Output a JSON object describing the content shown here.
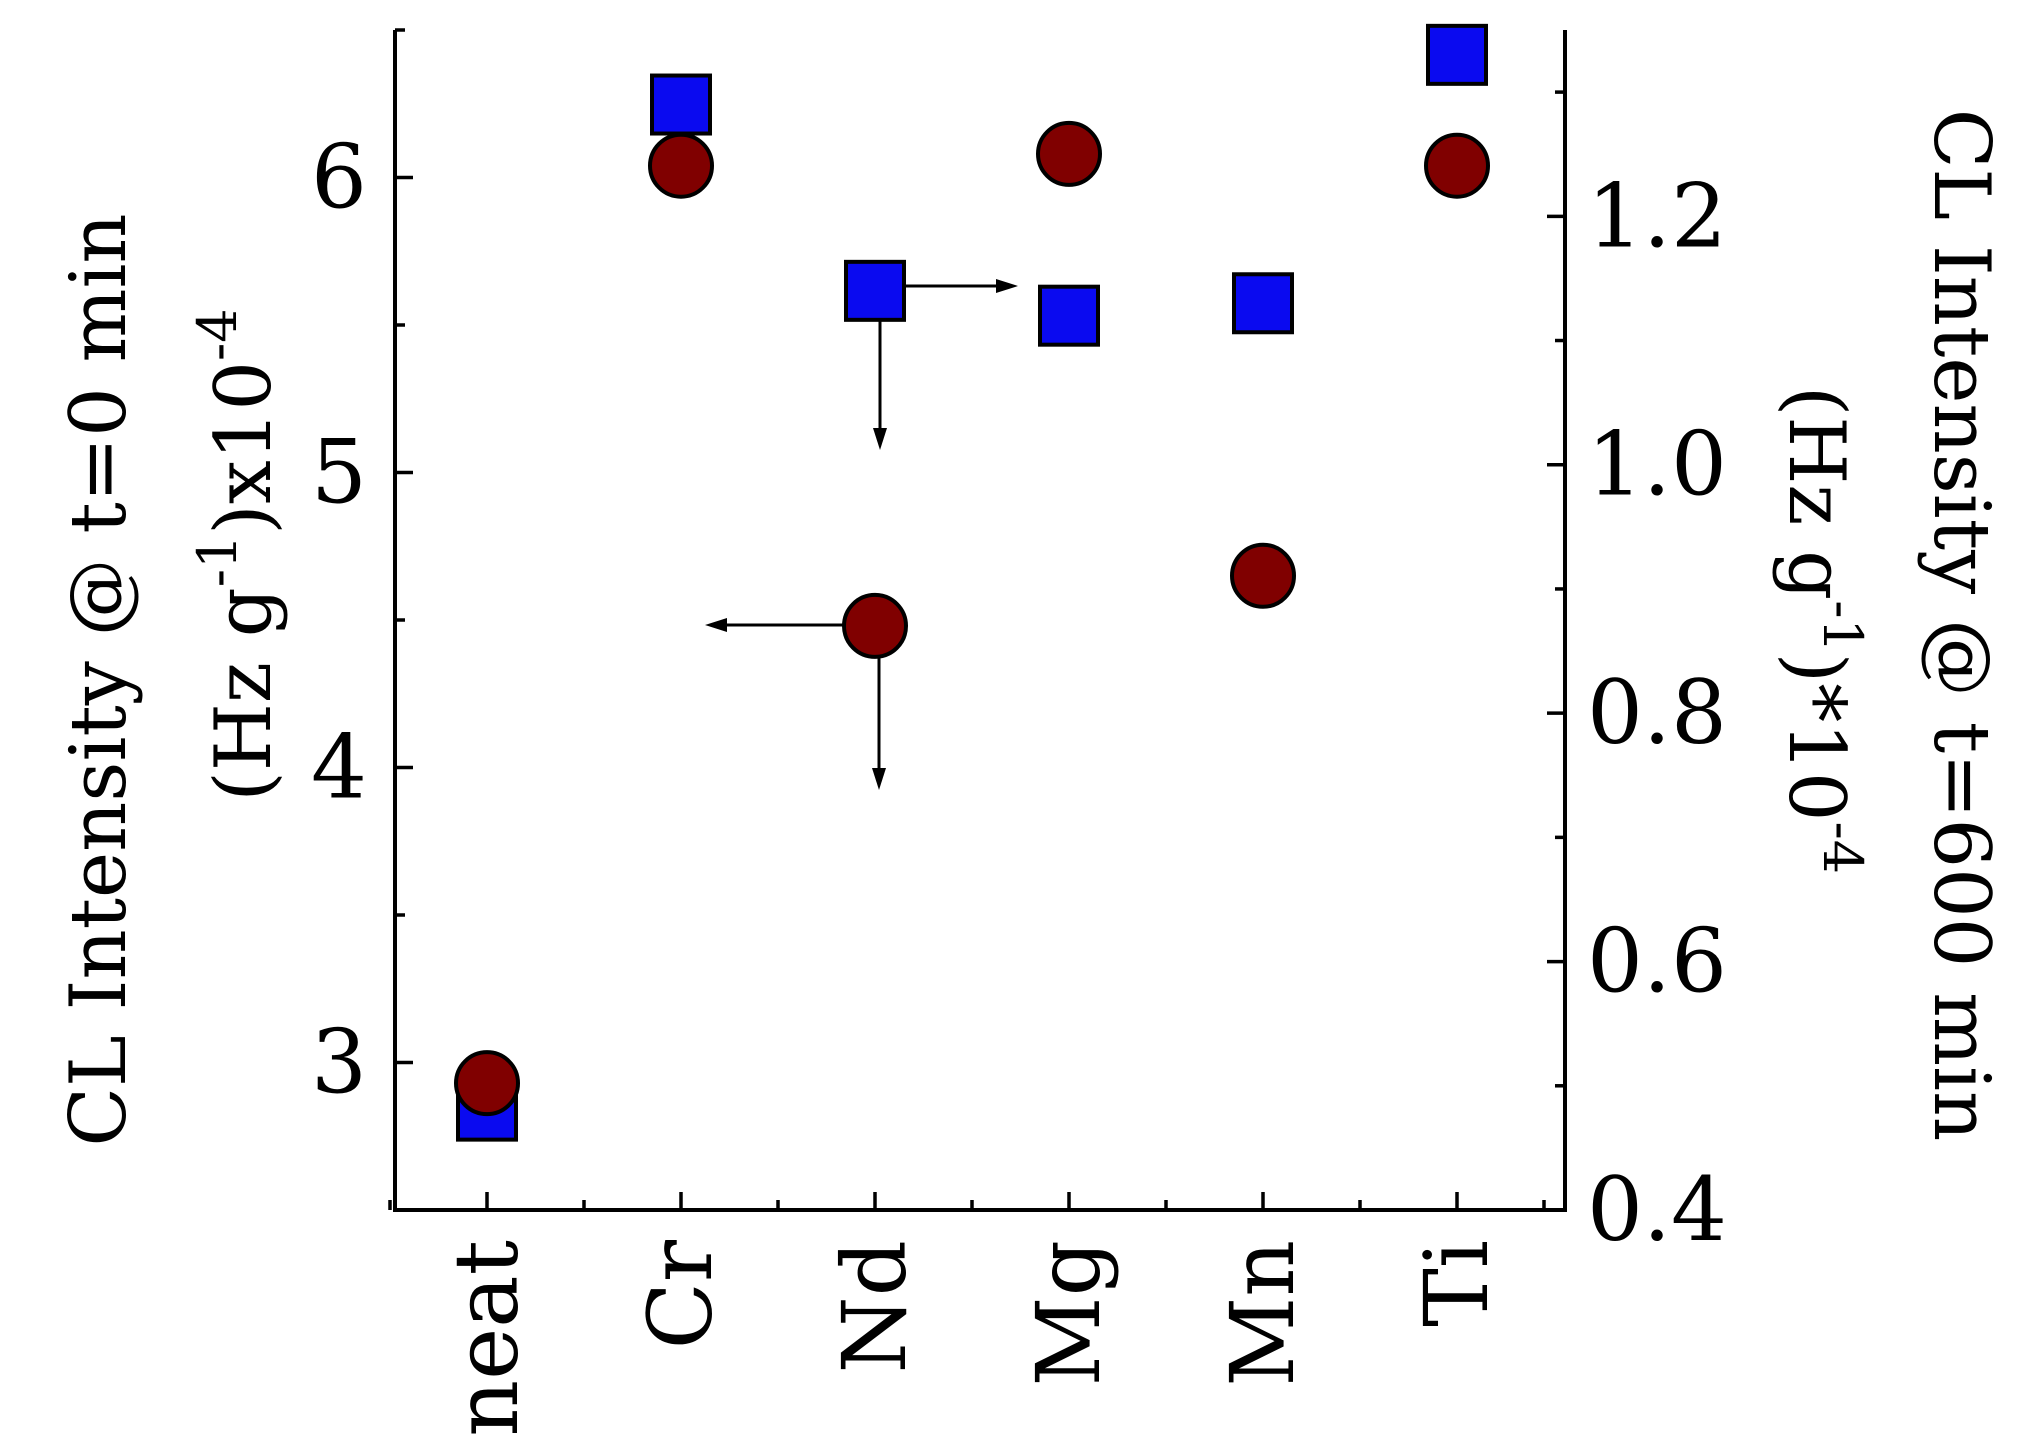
{
  "chart_data": {
    "type": "scatter",
    "categories": [
      "neat",
      "Cr",
      "Nd",
      "Mg",
      "Mn",
      "Ti"
    ],
    "left_axis": {
      "label_main": "CL Intensity @ t=0 min",
      "label_line2_a": "(Hz g",
      "label_line2_sup1": "-1",
      "label_line2_b": ")x10",
      "label_line2_sup2": "-4",
      "ylim": [
        2.5,
        6.5
      ],
      "ticks": [
        3,
        4,
        5,
        6
      ],
      "tick_labels": [
        "3",
        "4",
        "5",
        "6"
      ],
      "minor_ticks": [
        3.5,
        4.5,
        5.5,
        6.5
      ]
    },
    "right_axis": {
      "label_main": "CL Intensity @ t=600 min",
      "label_line2_a": "(Hz g",
      "label_line2_sup1": "-1",
      "label_line2_b": ")*10",
      "label_line2_sup2": "-4",
      "ylim": [
        0.4,
        1.35
      ],
      "ticks": [
        0.4,
        0.6,
        0.8,
        1.0,
        1.2
      ],
      "tick_labels": [
        "0.4",
        "0.6",
        "0.8",
        "1.0",
        "1.2"
      ],
      "minor_ticks": [
        0.5,
        0.7,
        0.9,
        1.1,
        1.3
      ]
    },
    "series": [
      {
        "marker": "square",
        "axis": "right",
        "color": "#0a0af0",
        "values": [
          0.48,
          1.29,
          1.14,
          1.12,
          1.13,
          1.33
        ]
      },
      {
        "marker": "circle",
        "axis": "left",
        "color": "#800000",
        "values": [
          2.93,
          6.04,
          4.48,
          6.08,
          4.65,
          6.04
        ]
      }
    ],
    "grid": false,
    "legend": "none"
  }
}
